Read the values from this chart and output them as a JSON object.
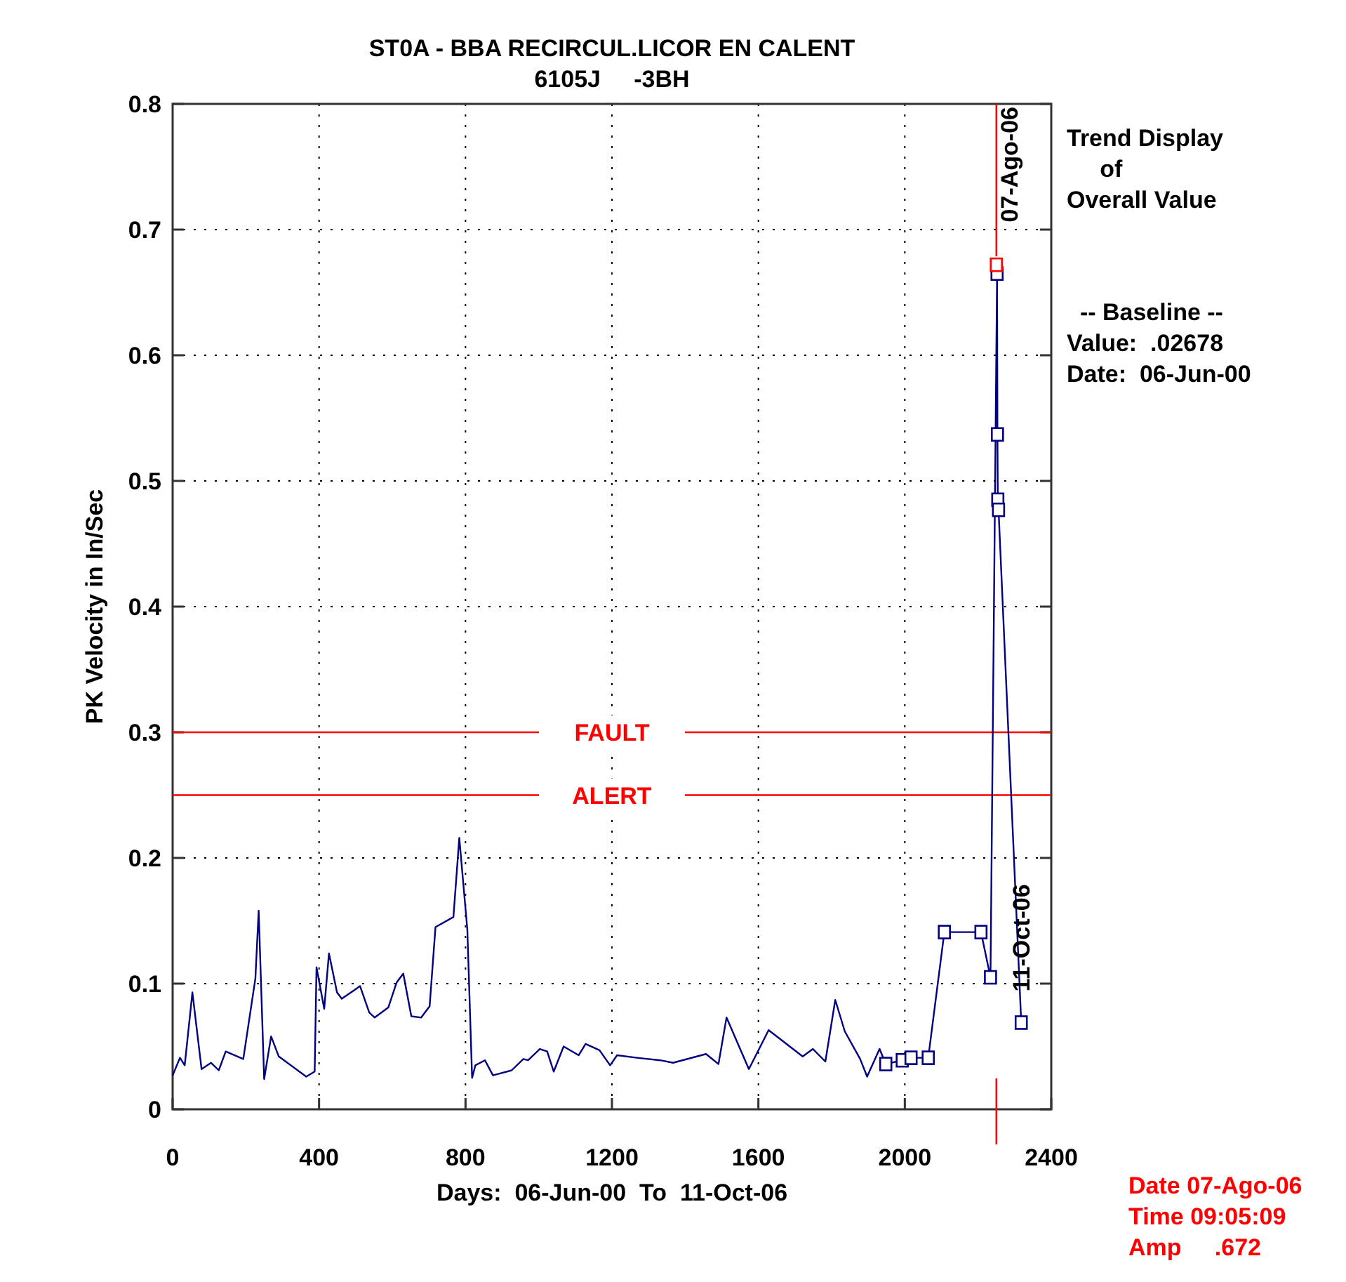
{
  "chart_data": {
    "type": "line",
    "title": "ST0A - BBA RECIRCUL.LICOR EN CALENT",
    "subtitle": "6105J     -3BH",
    "xlabel": "Days:  06-Jun-00  To  11-Oct-06",
    "ylabel": "PK Velocity in In/Sec",
    "xlim": [
      0,
      2400
    ],
    "xticks": [
      0,
      400,
      800,
      1200,
      1600,
      2000,
      2400
    ],
    "ylim": [
      0,
      0.8
    ],
    "yticks": [
      0,
      0.1,
      0.2,
      0.3,
      0.4,
      0.5,
      0.6,
      0.7,
      0.8
    ],
    "grid": true,
    "line_style": "solid",
    "series": [
      {
        "color": "#000080",
        "marker": "none",
        "x": [
          0,
          20,
          33,
          54,
          79,
          105,
          126,
          145,
          193,
          226,
          235,
          250,
          269,
          290,
          365,
          388,
          393,
          414,
          427,
          449,
          462,
          512,
          537,
          552,
          589,
          612,
          630,
          652,
          679,
          702,
          718,
          767,
          783,
          805,
          818,
          827,
          853,
          875,
          926,
          958,
          971,
          1003,
          1023,
          1041,
          1068,
          1109,
          1128,
          1166,
          1195,
          1214,
          1268,
          1332,
          1367,
          1457,
          1491,
          1513,
          1574,
          1628,
          1721,
          1749,
          1783,
          1810,
          1836,
          1878,
          1897,
          1931,
          1948
        ],
        "values": [
          0.027,
          0.041,
          0.035,
          0.093,
          0.032,
          0.037,
          0.031,
          0.046,
          0.04,
          0.104,
          0.158,
          0.024,
          0.058,
          0.042,
          0.026,
          0.03,
          0.113,
          0.08,
          0.124,
          0.093,
          0.088,
          0.098,
          0.077,
          0.073,
          0.081,
          0.101,
          0.108,
          0.074,
          0.073,
          0.082,
          0.145,
          0.153,
          0.216,
          0.143,
          0.025,
          0.035,
          0.039,
          0.027,
          0.031,
          0.04,
          0.039,
          0.048,
          0.046,
          0.03,
          0.05,
          0.043,
          0.052,
          0.047,
          0.035,
          0.043,
          0.041,
          0.039,
          0.037,
          0.044,
          0.036,
          0.073,
          0.032,
          0.063,
          0.042,
          0.048,
          0.038,
          0.087,
          0.062,
          0.04,
          0.026,
          0.048,
          0.036
        ]
      },
      {
        "color": "#000080",
        "marker": "square",
        "x": [
          1948,
          1993,
          2017,
          2064,
          2108,
          2208,
          2234,
          2252,
          2253,
          2254,
          2256,
          2318
        ],
        "values": [
          0.036,
          0.039,
          0.041,
          0.041,
          0.141,
          0.141,
          0.105,
          0.665,
          0.537,
          0.485,
          0.477,
          0.069
        ]
      },
      {
        "type": "scatter",
        "color": "#ff0000",
        "marker": "square",
        "x": [
          2250
        ],
        "values": [
          0.672
        ]
      }
    ],
    "ref_lines": [
      {
        "axis": "y",
        "value": 0.3,
        "label": "FAULT",
        "color": "#ff0000"
      },
      {
        "axis": "y",
        "value": 0.25,
        "label": "ALERT",
        "color": "#ff0000"
      },
      {
        "axis": "x",
        "value": 2250,
        "label": "07-Ago-06",
        "color": "#ff0000"
      }
    ],
    "annotations": [
      "Trend Display\n     of\nOverall Value",
      "  -- Baseline --\nValue:  .02678\nDate:  06-Jun-00",
      "Date 07-Ago-06\nTime 09:05:09\nAmp     .672",
      {
        "text": "11-Oct-06",
        "x": 2318,
        "y": 0.069
      }
    ]
  }
}
